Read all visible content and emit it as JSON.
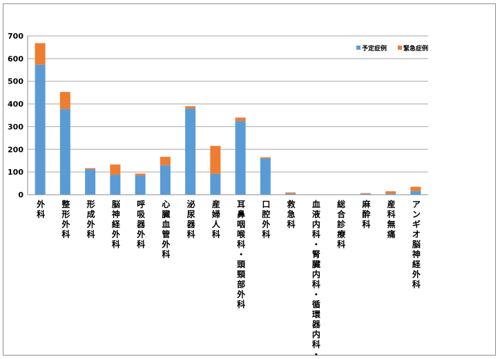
{
  "chart_data": {
    "type": "bar",
    "stacked": true,
    "categories": [
      "外科",
      "整形外科",
      "形成外科",
      "脳神経外科",
      "呼吸器外科",
      "心臓血管外科",
      "泌尿器科",
      "産婦人科",
      "耳鼻咽喉科・頭頸部外科",
      "口腔外科",
      "救急科",
      "血液内科・腎臓内科・循環器内科・",
      "総合診療科",
      "麻酔科",
      "産科無痛",
      "アンギオ脳神経外科"
    ],
    "series": [
      {
        "name": "予定症例",
        "color": "#5b9bd5",
        "values": [
          573,
          378,
          112,
          88,
          85,
          130,
          380,
          92,
          325,
          160,
          5,
          0,
          0,
          4,
          5,
          16
        ]
      },
      {
        "name": "緊急症例",
        "color": "#ed7d31",
        "values": [
          95,
          75,
          5,
          45,
          8,
          37,
          10,
          123,
          15,
          5,
          5,
          0,
          0,
          3,
          10,
          19
        ]
      }
    ],
    "ylim": [
      0,
      700
    ],
    "yticks": [
      0,
      100,
      200,
      300,
      400,
      500,
      600,
      700
    ],
    "grid": true,
    "legend_position": "top-right",
    "title": "",
    "xlabel": "",
    "ylabel": ""
  }
}
